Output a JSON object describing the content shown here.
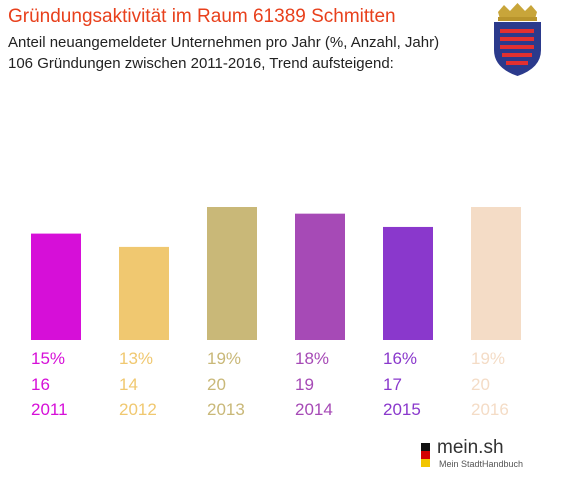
{
  "title": "Gründungsaktivität im Raum 61389 Schmitten",
  "subtitle_line1": "Anteil neuangemeldeter Unternehmen pro Jahr (%, Anzahl, Jahr)",
  "subtitle_line2": "106 Gründungen zwischen 2011-2016, Trend aufsteigend:",
  "logo": {
    "name": "mein.sh",
    "tagline": "Mein StadtHandbuch"
  },
  "crest_icon": "hesse-coat-of-arms-icon",
  "chart_data": {
    "type": "bar",
    "categories": [
      "2011",
      "2012",
      "2013",
      "2014",
      "2015",
      "2016"
    ],
    "values": [
      16,
      14,
      20,
      19,
      17,
      20
    ],
    "percent_labels": [
      "15%",
      "13%",
      "19%",
      "18%",
      "16%",
      "19%"
    ],
    "count_labels": [
      "16",
      "14",
      "20",
      "19",
      "17",
      "20"
    ],
    "colors": [
      "#d60fd8",
      "#f0c870",
      "#c9b878",
      "#a64ab6",
      "#8a38cc",
      "#f4dcc6"
    ],
    "ylim": [
      0,
      20
    ]
  }
}
